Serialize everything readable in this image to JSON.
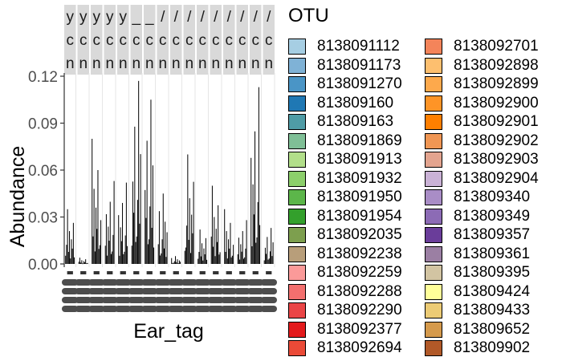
{
  "chart_data": {
    "type": "bar",
    "ylabel": "Abundance",
    "xlabel": "Ear_tag",
    "ylim": [
      0,
      0.12
    ],
    "y_ticks": [
      "0.00",
      "0.03",
      "0.06",
      "0.09",
      "0.12"
    ],
    "y_tick_values": [
      0,
      0.03,
      0.06,
      0.09,
      0.12
    ],
    "grid": false,
    "facet_strip_rows": [
      "y",
      "c",
      "n"
    ],
    "facets": [
      {
        "strip_top": "y",
        "peak": 0.035
      },
      {
        "strip_top": "y",
        "peak": 0.004
      },
      {
        "strip_top": "y",
        "peak": 0.08
      },
      {
        "strip_top": "y",
        "peak": 0.053
      },
      {
        "strip_top": "y",
        "peak": 0.052
      },
      {
        "strip_top": "_",
        "peak": 0.117
      },
      {
        "strip_top": "_",
        "peak": 0.105
      },
      {
        "strip_top": "/",
        "peak": 0.045
      },
      {
        "strip_top": "/",
        "peak": 0.005
      },
      {
        "strip_top": "/",
        "peak": 0.07
      },
      {
        "strip_top": "/",
        "peak": 0.022
      },
      {
        "strip_top": "/",
        "peak": 0.05
      },
      {
        "strip_top": "/",
        "peak": 0.035
      },
      {
        "strip_top": "/",
        "peak": 0.028
      },
      {
        "strip_top": "/",
        "peak": 0.113
      },
      {
        "strip_top": "/",
        "peak": 0.023
      }
    ],
    "legend": {
      "title": "OTU",
      "placement": "right",
      "entries": [
        {
          "label": "8138091112",
          "color": "#a6cee3"
        },
        {
          "label": "8138091173",
          "color": "#7fb2d6"
        },
        {
          "label": "8138091270",
          "color": "#4a95c6"
        },
        {
          "label": "813809160",
          "color": "#1f78b4"
        },
        {
          "label": "813809163",
          "color": "#4f9ca6"
        },
        {
          "label": "8138091869",
          "color": "#7fbf96"
        },
        {
          "label": "8138091913",
          "color": "#b2df8a"
        },
        {
          "label": "8138091932",
          "color": "#8ccf6b"
        },
        {
          "label": "8138091950",
          "color": "#5cb64a"
        },
        {
          "label": "8138091954",
          "color": "#33a02c"
        },
        {
          "label": "8138092035",
          "color": "#7d9f4e"
        },
        {
          "label": "8138092238",
          "color": "#b89e7a"
        },
        {
          "label": "8138092259",
          "color": "#fb9a99"
        },
        {
          "label": "8138092288",
          "color": "#f36f6e"
        },
        {
          "label": "8138092290",
          "color": "#ea4546"
        },
        {
          "label": "8138092377",
          "color": "#e31a1c"
        },
        {
          "label": "8138092694",
          "color": "#ea4a37"
        },
        {
          "label": "8138092701",
          "color": "#f4845a"
        },
        {
          "label": "8138092898",
          "color": "#fdbf6f"
        },
        {
          "label": "8138092899",
          "color": "#fda94c"
        },
        {
          "label": "8138092900",
          "color": "#fe9426"
        },
        {
          "label": "8138092901",
          "color": "#ff7f00"
        },
        {
          "label": "8138092902",
          "color": "#f09654"
        },
        {
          "label": "8138092903",
          "color": "#e3a48f"
        },
        {
          "label": "8138092904",
          "color": "#cab2d6"
        },
        {
          "label": "813809340",
          "color": "#a98dc6"
        },
        {
          "label": "813809349",
          "color": "#8c6bb5"
        },
        {
          "label": "813809357",
          "color": "#6a3d9a"
        },
        {
          "label": "813809361",
          "color": "#9b7fa3"
        },
        {
          "label": "813809395",
          "color": "#d2c4a2"
        },
        {
          "label": "813809424",
          "color": "#ffff99"
        },
        {
          "label": "813809433",
          "color": "#eccb75"
        },
        {
          "label": "813809652",
          "color": "#d59a4c"
        },
        {
          "label": "813809902",
          "color": "#b15928"
        }
      ]
    }
  }
}
